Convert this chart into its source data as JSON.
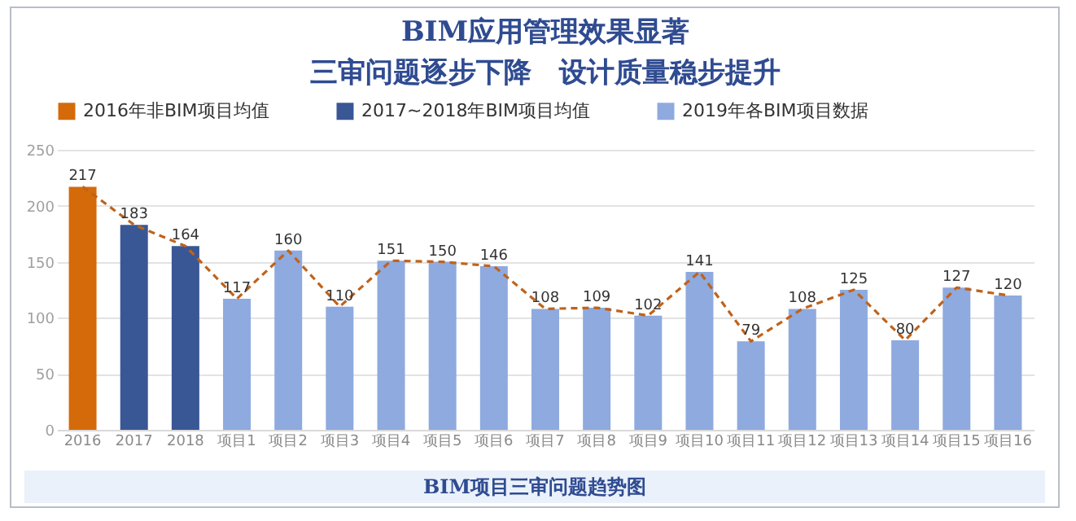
{
  "chart_data": {
    "type": "bar",
    "title": "BIM应用管理效果显著",
    "subtitle": "三审问题逐步下降　设计质量稳步提升",
    "categories": [
      "2016",
      "2017",
      "2018",
      "项目1",
      "项目2",
      "项目3",
      "项目4",
      "项目5",
      "项目6",
      "项目7",
      "项目8",
      "项目9",
      "项目10",
      "项目11",
      "项目12",
      "项目13",
      "项目14",
      "项目15",
      "项目16"
    ],
    "series": [
      {
        "name": "2016年非BIM项目均值",
        "color": "#d46a0a",
        "values": [
          217,
          null,
          null,
          null,
          null,
          null,
          null,
          null,
          null,
          null,
          null,
          null,
          null,
          null,
          null,
          null,
          null,
          null,
          null
        ],
        "value_labels": [
          "217",
          null,
          null,
          null,
          null,
          null,
          null,
          null,
          null,
          null,
          null,
          null,
          null,
          null,
          null,
          null,
          null,
          null,
          null
        ]
      },
      {
        "name": "2017~2018年BIM项目均值",
        "color": "#3a5795",
        "values": [
          null,
          183,
          164,
          null,
          null,
          null,
          null,
          null,
          null,
          null,
          null,
          null,
          null,
          null,
          null,
          null,
          null,
          null,
          null
        ],
        "value_labels": [
          null,
          "183",
          "164",
          null,
          null,
          null,
          null,
          null,
          null,
          null,
          null,
          null,
          null,
          null,
          null,
          null,
          null,
          null,
          null
        ]
      },
      {
        "name": "2019年各BIM项目数据",
        "color": "#8eaadf",
        "values": [
          null,
          null,
          null,
          117,
          160,
          110,
          151,
          150,
          146,
          108,
          109,
          102,
          141,
          79,
          108,
          125,
          80,
          127,
          120
        ],
        "value_labels": [
          null,
          null,
          null,
          "117",
          "160",
          "110",
          "151",
          "150",
          "146",
          "108",
          "109",
          "102",
          "141",
          "79",
          "108",
          "125",
          "80",
          "127",
          "120"
        ]
      },
      {
        "type": "line",
        "color": "#c0621a",
        "line_style": "dashed",
        "values": [
          217,
          183,
          164,
          117,
          160,
          110,
          151,
          150,
          146,
          108,
          109,
          102,
          141,
          79,
          108,
          125,
          80,
          127,
          120
        ]
      }
    ],
    "ylim": [
      0,
      250
    ],
    "yticks": [
      0,
      50,
      100,
      150,
      200,
      250
    ],
    "grid": "y",
    "legend": "top",
    "annotations": [
      "BIM项目三审问题趋势图"
    ]
  }
}
